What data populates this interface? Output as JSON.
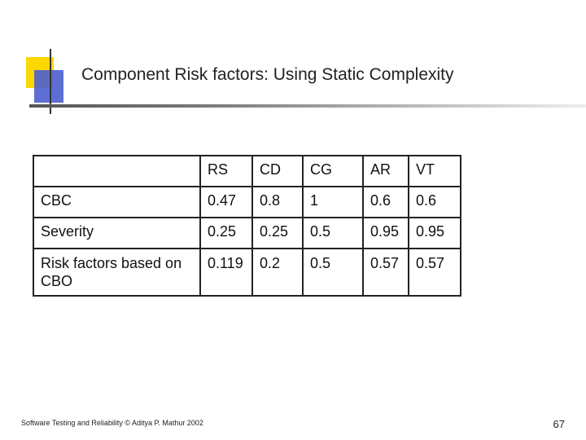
{
  "slide": {
    "title": "Component Risk factors: Using Static Complexity",
    "footer": "Software Testing and Reliability © Aditya P. Mathur 2002",
    "page_number": "67"
  },
  "table": {
    "headers": [
      "",
      "RS",
      "CD",
      "CG",
      "AR",
      "VT"
    ],
    "rows": [
      [
        "CBC",
        "0.47",
        "0.8",
        "1",
        "0.6",
        "0.6"
      ],
      [
        "Severity",
        "0.25",
        "0.25",
        "0.5",
        "0.95",
        "0.95"
      ],
      [
        "Risk factors based on CBO",
        "0.119",
        "0.2",
        "0.5",
        "0.57",
        "0.57"
      ]
    ]
  }
}
